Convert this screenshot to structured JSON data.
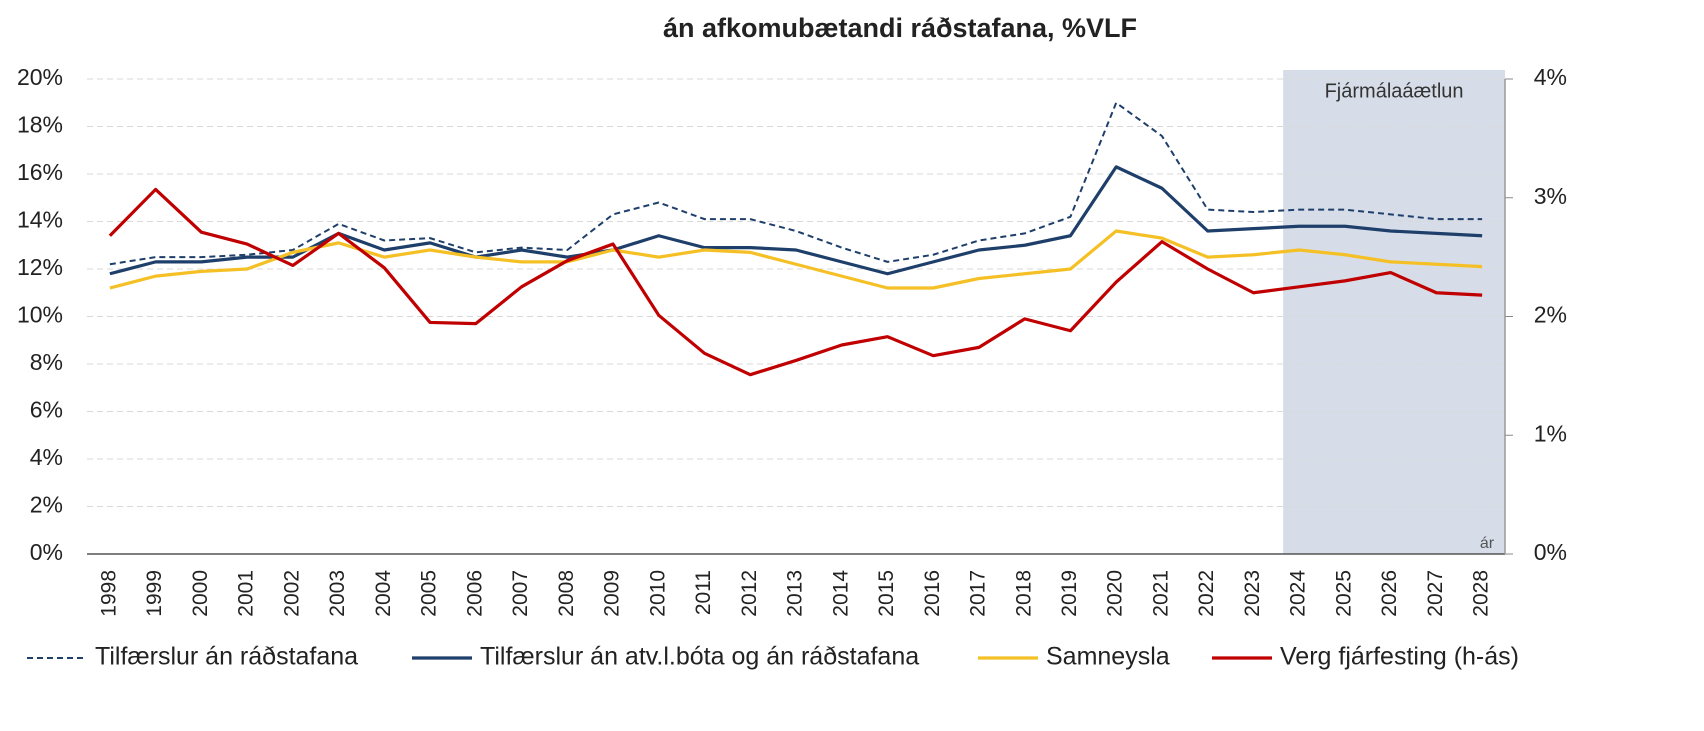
{
  "chart_data": {
    "type": "line",
    "title": "án afkomubætandi ráðstafana, %VLF",
    "x_label": "ár",
    "categories": [
      "1998",
      "1999",
      "2000",
      "2001",
      "2002",
      "2003",
      "2004",
      "2005",
      "2006",
      "2007",
      "2008",
      "2009",
      "2010",
      "2011",
      "2012",
      "2013",
      "2014",
      "2015",
      "2016",
      "2017",
      "2018",
      "2019",
      "2020",
      "2021",
      "2022",
      "2023",
      "2024",
      "2025",
      "2026",
      "2027",
      "2028"
    ],
    "shaded_region": {
      "from": "2024",
      "to": "2028",
      "label": "Fjármálaáætlun",
      "color": "#d6dde8"
    },
    "series": [
      {
        "name": "Tilfærslur án ráðstafana",
        "color": "#1f3f6b",
        "line_style": "dashed",
        "values": [
          12.2,
          12.5,
          12.5,
          12.6,
          12.8,
          13.9,
          13.2,
          13.3,
          12.7,
          12.9,
          12.8,
          14.3,
          14.8,
          14.1,
          14.1,
          13.6,
          12.9,
          12.3,
          12.6,
          13.2,
          13.5,
          14.2,
          19.0,
          17.6,
          14.5,
          14.4,
          14.5,
          14.5,
          14.3,
          14.1,
          14.1
        ]
      },
      {
        "name": "Tilfærslur án atv.l.bóta og án ráðstafana",
        "color": "#1f3f6b",
        "line_style": "solid",
        "values": [
          11.8,
          12.3,
          12.3,
          12.5,
          12.5,
          13.5,
          12.8,
          13.1,
          12.5,
          12.8,
          12.5,
          12.8,
          13.4,
          12.9,
          12.9,
          12.8,
          12.3,
          11.8,
          12.3,
          12.8,
          13.0,
          13.4,
          16.3,
          15.4,
          13.6,
          13.7,
          13.8,
          13.8,
          13.6,
          13.5,
          13.4
        ]
      },
      {
        "name": "Samneysla",
        "color": "#f5c026",
        "line_style": "solid",
        "values": [
          11.2,
          11.7,
          11.9,
          12.0,
          12.7,
          13.1,
          12.5,
          12.8,
          12.5,
          12.3,
          12.3,
          12.8,
          12.5,
          12.8,
          12.7,
          12.2,
          11.7,
          11.2,
          11.2,
          11.6,
          11.8,
          12.0,
          13.6,
          13.3,
          12.5,
          12.6,
          12.8,
          12.6,
          12.3,
          12.2,
          12.1
        ]
      },
      {
        "name": "Verg fjárfesting (h-ás)",
        "color": "#c00000",
        "line_style": "solid",
        "axis": "y2",
        "values": [
          2.68,
          3.07,
          2.71,
          2.61,
          2.43,
          2.7,
          2.41,
          1.95,
          1.94,
          2.25,
          2.47,
          2.61,
          2.01,
          1.69,
          1.51,
          1.63,
          1.76,
          1.83,
          1.67,
          1.74,
          1.98,
          1.88,
          2.29,
          2.63,
          2.4,
          2.2,
          2.25,
          2.3,
          2.37,
          2.2,
          2.18
        ]
      }
    ],
    "ylim": [
      0,
      20
    ],
    "yticks": [
      {
        "value": 0,
        "label": "0%"
      },
      {
        "value": 2,
        "label": "2%"
      },
      {
        "value": 4,
        "label": "4%"
      },
      {
        "value": 6,
        "label": "6%"
      },
      {
        "value": 8,
        "label": "8%"
      },
      {
        "value": 10,
        "label": "10%"
      },
      {
        "value": 12,
        "label": "12%"
      },
      {
        "value": 14,
        "label": "14%"
      },
      {
        "value": 16,
        "label": "16%"
      },
      {
        "value": 18,
        "label": "18%"
      },
      {
        "value": 20,
        "label": "20%"
      }
    ],
    "y2lim": [
      0,
      4
    ],
    "y2ticks": [
      {
        "value": 0,
        "label": "0%"
      },
      {
        "value": 1,
        "label": "1%"
      },
      {
        "value": 2,
        "label": "2%"
      },
      {
        "value": 3,
        "label": "3%"
      },
      {
        "value": 4,
        "label": "4%"
      }
    ],
    "grid": true,
    "legend": "bottom"
  }
}
